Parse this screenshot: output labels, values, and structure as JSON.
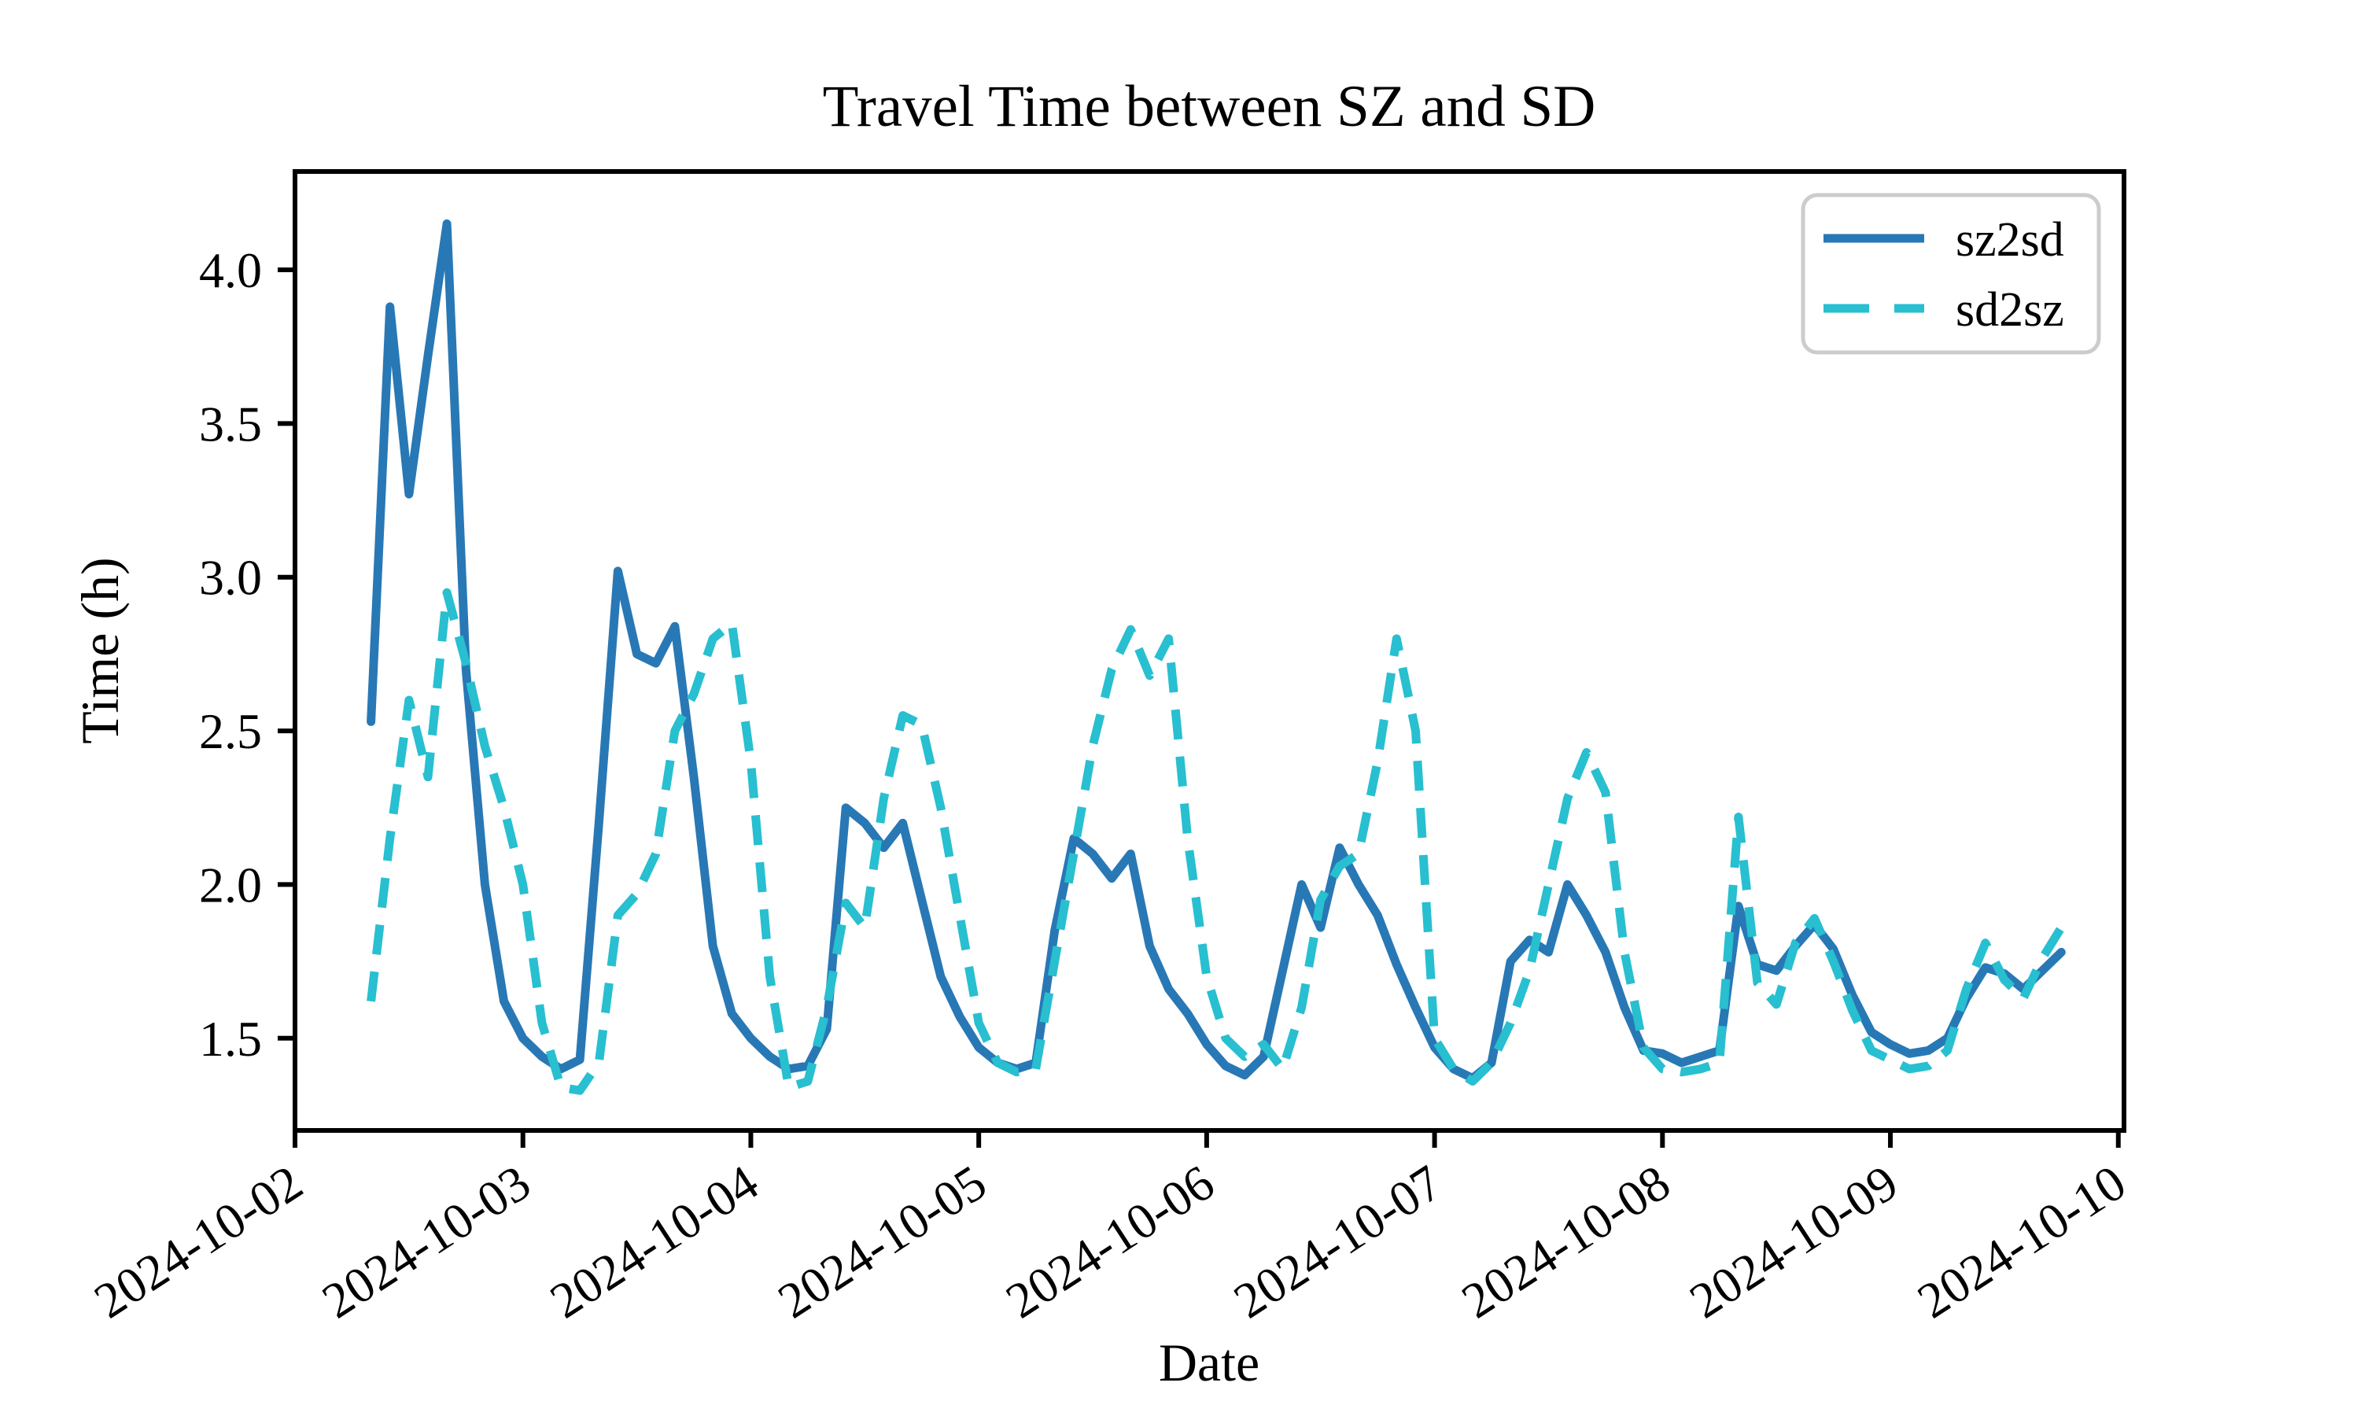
{
  "chart_data": {
    "type": "line",
    "title": "Travel Time between SZ and SD",
    "xlabel": "Date",
    "ylabel": "Time (h)",
    "grid": false,
    "legend_position": "upper right",
    "x_tick_labels": [
      "2024-10-02",
      "2024-10-03",
      "2024-10-04",
      "2024-10-05",
      "2024-10-06",
      "2024-10-07",
      "2024-10-08",
      "2024-10-09",
      "2024-10-10"
    ],
    "y_ticks": [
      "1.5",
      "2.0",
      "2.5",
      "3.0",
      "3.5",
      "4.0"
    ],
    "ylim": [
      1.2,
      4.32
    ],
    "xlim_days": [
      0,
      8.025
    ],
    "x_start": "2024-10-02 08:00",
    "x_step_hours": 2,
    "axis_color": "#000000",
    "series": [
      {
        "name": "sz2sd",
        "style": "solid",
        "color": "#2878b5",
        "values": [
          2.53,
          3.88,
          3.27,
          3.72,
          4.15,
          2.7,
          2.0,
          1.62,
          1.5,
          1.44,
          1.4,
          1.43,
          2.2,
          3.02,
          2.75,
          2.72,
          2.84,
          2.35,
          1.8,
          1.58,
          1.5,
          1.44,
          1.4,
          1.41,
          1.53,
          2.25,
          2.2,
          2.12,
          2.2,
          1.95,
          1.7,
          1.57,
          1.47,
          1.42,
          1.4,
          1.42,
          1.85,
          2.15,
          2.1,
          2.02,
          2.1,
          1.8,
          1.66,
          1.58,
          1.48,
          1.41,
          1.38,
          1.44,
          1.72,
          2.0,
          1.86,
          2.12,
          2.0,
          1.9,
          1.74,
          1.6,
          1.47,
          1.4,
          1.37,
          1.42,
          1.75,
          1.82,
          1.78,
          2.0,
          1.9,
          1.78,
          1.6,
          1.46,
          1.45,
          1.42,
          1.44,
          1.46,
          1.93,
          1.74,
          1.72,
          1.8,
          1.87,
          1.79,
          1.64,
          1.52,
          1.48,
          1.45,
          1.46,
          1.5,
          1.63,
          1.73,
          1.71,
          1.66,
          1.72,
          1.78
        ]
      },
      {
        "name": "sd2sz",
        "style": "dashed",
        "color": "#28bfd0",
        "values": [
          1.62,
          2.15,
          2.6,
          2.35,
          2.95,
          2.72,
          2.45,
          2.25,
          2.0,
          1.55,
          1.34,
          1.33,
          1.42,
          1.9,
          1.97,
          2.1,
          2.5,
          2.62,
          2.8,
          2.85,
          2.4,
          1.7,
          1.34,
          1.36,
          1.6,
          1.94,
          1.86,
          2.28,
          2.55,
          2.52,
          2.25,
          1.9,
          1.55,
          1.42,
          1.39,
          1.4,
          1.75,
          2.1,
          2.45,
          2.7,
          2.83,
          2.68,
          2.8,
          2.15,
          1.7,
          1.5,
          1.44,
          1.48,
          1.4,
          1.6,
          1.95,
          2.06,
          2.1,
          2.4,
          2.8,
          2.5,
          1.5,
          1.4,
          1.36,
          1.42,
          1.55,
          1.72,
          2.0,
          2.28,
          2.43,
          2.3,
          1.78,
          1.47,
          1.4,
          1.39,
          1.4,
          1.42,
          2.22,
          1.68,
          1.61,
          1.81,
          1.89,
          1.75,
          1.59,
          1.46,
          1.43,
          1.4,
          1.41,
          1.46,
          1.66,
          1.81,
          1.69,
          1.63,
          1.76,
          1.86
        ]
      }
    ]
  }
}
